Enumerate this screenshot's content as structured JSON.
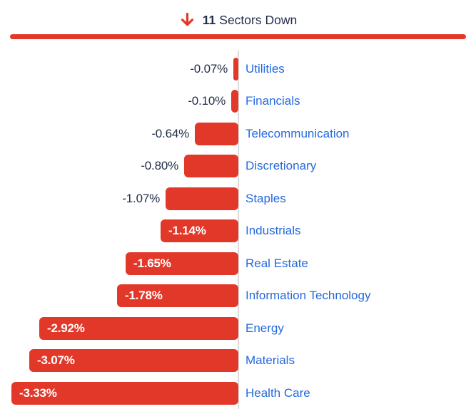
{
  "header": {
    "count": "11",
    "text": "Sectors Down",
    "arrow_icon": "arrow-down-icon"
  },
  "colors": {
    "accent_red": "#E2382A",
    "label_blue": "#2469DE",
    "value_navy": "#222E49",
    "axis_gray": "#DCDCDC",
    "value_inside_white": "#FFFFFF"
  },
  "chart_data": {
    "type": "bar",
    "orientation": "horizontal",
    "title": "11 Sectors Down",
    "categories": [
      "Utilities",
      "Financials",
      "Telecommunication",
      "Discretionary",
      "Staples",
      "Industrials",
      "Real Estate",
      "Information Technology",
      "Energy",
      "Materials",
      "Health Care"
    ],
    "values": [
      -0.07,
      -0.1,
      -0.64,
      -0.8,
      -1.07,
      -1.14,
      -1.65,
      -1.78,
      -2.92,
      -3.07,
      -3.33
    ],
    "value_labels": [
      "-0.07%",
      "-0.10%",
      "-0.64%",
      "-0.80%",
      "-1.07%",
      "-1.14%",
      "-1.65%",
      "-1.78%",
      "-2.92%",
      "-3.07%",
      "-3.33%"
    ],
    "xlim": [
      -3.5,
      0
    ],
    "grid": false,
    "legend": false
  }
}
